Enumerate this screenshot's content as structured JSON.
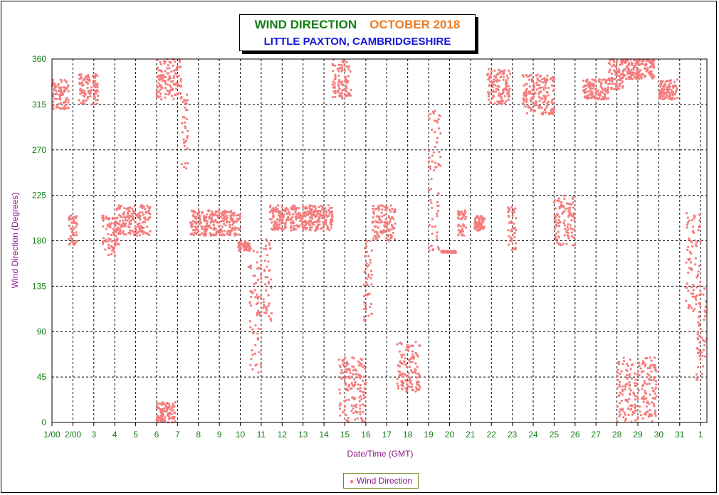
{
  "title": "WIND DIRECTION",
  "title_month": "OCTOBER 2018",
  "subtitle": "LITTLE PAXTON, CAMBRIDGESHIRE",
  "legend_label": "Wind Direction",
  "colors": {
    "points": "#f47c7c",
    "ticks": "#138013",
    "axis_labels": "#8b1a8b",
    "title": "#138013",
    "month": "#ee7b1f",
    "subtitle": "#1414dc"
  },
  "chart_data": {
    "type": "scatter",
    "title": "WIND DIRECTION",
    "subtitle": "LITTLE PAXTON, CAMBRIDGESHIRE",
    "xlabel": "Date/Time (GMT)",
    "ylabel": "Wind Direction (Degrees)",
    "ylim": [
      0,
      360
    ],
    "yticks": [
      "0",
      "45",
      "90",
      "135",
      "180",
      "225",
      "270",
      "315",
      "360"
    ],
    "xticks": [
      "1/00",
      "2/00",
      "3",
      "4",
      "5",
      "6",
      "7",
      "8",
      "9",
      "10",
      "11",
      "12",
      "13",
      "14",
      "15",
      "16",
      "17",
      "18",
      "19",
      "20",
      "21",
      "22",
      "23",
      "24",
      "25",
      "26",
      "27",
      "28",
      "29",
      "30",
      "31",
      "1"
    ],
    "xlim_days": [
      1,
      32.3
    ],
    "grid": true,
    "legend_position": "bottom-center",
    "series": [
      {
        "name": "Wind Direction",
        "marker": "dot",
        "clusters": [
          {
            "day": [
              1.0,
              1.8
            ],
            "deg": [
              310,
              340
            ]
          },
          {
            "day": [
              1.8,
              2.2
            ],
            "deg": [
              175,
              205
            ]
          },
          {
            "day": [
              2.3,
              3.2
            ],
            "deg": [
              315,
              345
            ]
          },
          {
            "day": [
              3.4,
              4.2
            ],
            "deg": [
              165,
              205
            ]
          },
          {
            "day": [
              4.1,
              5.7
            ],
            "deg": [
              185,
              215
            ]
          },
          {
            "day": [
              6.0,
              7.2
            ],
            "deg": [
              320,
              360
            ]
          },
          {
            "day": [
              6.0,
              6.9
            ],
            "deg": [
              0,
              20
            ]
          },
          {
            "day": [
              7.2,
              7.5
            ],
            "deg": [
              250,
              330
            ]
          },
          {
            "day": [
              7.6,
              10.0
            ],
            "deg": [
              185,
              210
            ]
          },
          {
            "day": [
              9.9,
              10.5
            ],
            "deg": [
              170,
              180
            ]
          },
          {
            "day": [
              10.4,
              11.0
            ],
            "deg": [
              40,
              170
            ]
          },
          {
            "day": [
              11.1,
              11.5
            ],
            "deg": [
              95,
              185
            ]
          },
          {
            "day": [
              11.4,
              14.4
            ],
            "deg": [
              190,
              215
            ]
          },
          {
            "day": [
              14.4,
              15.3
            ],
            "deg": [
              320,
              360
            ]
          },
          {
            "day": [
              14.7,
              16.0
            ],
            "deg": [
              0,
              65
            ]
          },
          {
            "day": [
              15.9,
              16.3
            ],
            "deg": [
              100,
              180
            ]
          },
          {
            "day": [
              16.3,
              17.4
            ],
            "deg": [
              180,
              215
            ]
          },
          {
            "day": [
              17.5,
              18.6
            ],
            "deg": [
              30,
              80
            ]
          },
          {
            "day": [
              19.0,
              19.6
            ],
            "deg": [
              170,
              310
            ]
          },
          {
            "day": [
              19.6,
              20.3
            ],
            "deg": [
              168,
              170
            ]
          },
          {
            "day": [
              20.4,
              20.8
            ],
            "deg": [
              185,
              210
            ]
          },
          {
            "day": [
              21.2,
              21.7
            ],
            "deg": [
              190,
              205
            ]
          },
          {
            "day": [
              21.8,
              22.9
            ],
            "deg": [
              315,
              350
            ]
          },
          {
            "day": [
              22.8,
              23.2
            ],
            "deg": [
              170,
              215
            ]
          },
          {
            "day": [
              23.5,
              25.0
            ],
            "deg": [
              305,
              345
            ]
          },
          {
            "day": [
              25.0,
              26.0
            ],
            "deg": [
              175,
              225
            ]
          },
          {
            "day": [
              26.4,
              27.6
            ],
            "deg": [
              320,
              340
            ]
          },
          {
            "day": [
              27.6,
              28.3
            ],
            "deg": [
              330,
              360
            ]
          },
          {
            "day": [
              28.2,
              29.8
            ],
            "deg": [
              340,
              360
            ]
          },
          {
            "day": [
              28.0,
              29.9
            ],
            "deg": [
              0,
              65
            ]
          },
          {
            "day": [
              30.0,
              30.9
            ],
            "deg": [
              320,
              340
            ]
          },
          {
            "day": [
              31.3,
              32.0
            ],
            "deg": [
              110,
              210
            ]
          },
          {
            "day": [
              31.8,
              32.3
            ],
            "deg": [
              40,
              150
            ]
          }
        ]
      }
    ]
  }
}
